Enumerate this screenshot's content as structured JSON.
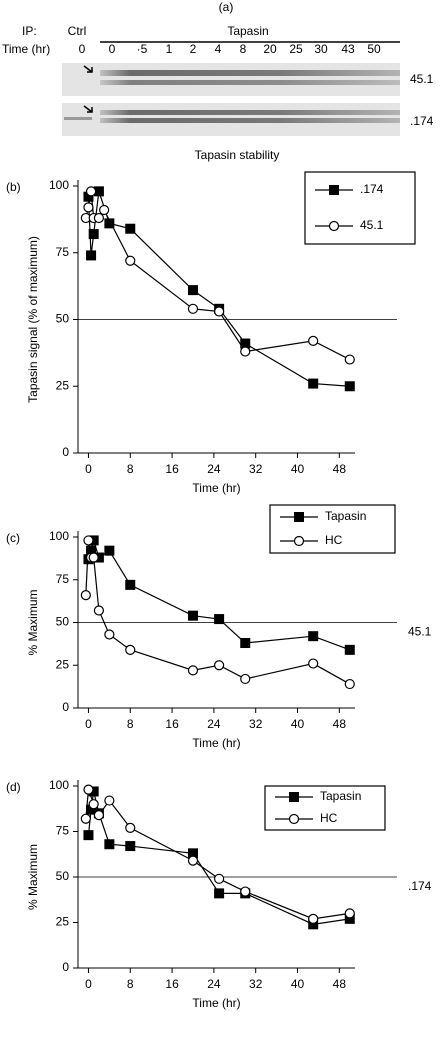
{
  "gel": {
    "label": "(a)",
    "ip": "IP:",
    "ctrl": "Ctrl",
    "tapasin": "Tapasin",
    "time": "Time (hr)",
    "lanes": [
      "0",
      "0",
      "·5",
      "1",
      "2",
      "4",
      "8",
      "20",
      "25",
      "30",
      "43",
      "50"
    ],
    "bands": [
      "45.1",
      ".174"
    ]
  },
  "chart_data": [
    {
      "type": "line",
      "panel": "(b)",
      "title": "Tapasin stability",
      "ylabel": "Tapasin signal (% of maximum)",
      "xlabel": "Time (hr)",
      "xlim": [
        -2,
        51
      ],
      "ylim": [
        0,
        100
      ],
      "xticks": [
        0,
        8,
        16,
        24,
        32,
        40,
        48
      ],
      "yticks": [
        0,
        25,
        50,
        75,
        100
      ],
      "hline": 50,
      "legend": "upper right",
      "series": [
        {
          "name": ".174",
          "color": "#000000",
          "marker": "square",
          "x": [
            0,
            0.5,
            1,
            2,
            4,
            8,
            20,
            25,
            30,
            43,
            50
          ],
          "values": [
            96,
            74,
            82,
            98,
            86,
            84,
            61,
            54,
            41,
            26,
            25
          ]
        },
        {
          "name": "45.1",
          "color": "#000000",
          "marker": "circle",
          "x": [
            -0.5,
            0,
            0.5,
            1,
            2,
            3,
            8,
            20,
            25,
            30,
            43,
            50
          ],
          "values": [
            88,
            92,
            98,
            88,
            88,
            91,
            72,
            54,
            53,
            38,
            42,
            35
          ]
        }
      ]
    },
    {
      "type": "line",
      "panel": "(c)",
      "ylabel": "% Maximum",
      "xlabel": "Time (hr)",
      "annotation": "45.1",
      "xlim": [
        -2,
        51
      ],
      "ylim": [
        0,
        100
      ],
      "xticks": [
        0,
        8,
        16,
        24,
        32,
        40,
        48
      ],
      "yticks": [
        0,
        25,
        50,
        75,
        100
      ],
      "hline": 50,
      "legend": "upper right",
      "series": [
        {
          "name": "Tapasin",
          "color": "#000000",
          "marker": "square",
          "x": [
            0,
            0.5,
            1,
            2,
            4,
            8,
            20,
            25,
            30,
            43,
            50
          ],
          "values": [
            87,
            92,
            98,
            88,
            92,
            72,
            54,
            52,
            38,
            42,
            34
          ]
        },
        {
          "name": "HC",
          "color": "#000000",
          "marker": "circle",
          "x": [
            -0.5,
            0,
            0.5,
            1,
            2,
            4,
            8,
            20,
            25,
            30,
            43,
            50
          ],
          "values": [
            66,
            98,
            88,
            88,
            57,
            43,
            34,
            22,
            25,
            17,
            26,
            14
          ]
        }
      ]
    },
    {
      "type": "line",
      "panel": "(d)",
      "ylabel": "% Maximum",
      "xlabel": "Time (hr)",
      "annotation": ".174",
      "xlim": [
        -2,
        51
      ],
      "ylim": [
        0,
        100
      ],
      "xticks": [
        0,
        8,
        16,
        24,
        32,
        40,
        48
      ],
      "yticks": [
        0,
        25,
        50,
        75,
        100
      ],
      "hline": 50,
      "legend": "upper right",
      "series": [
        {
          "name": "Tapasin",
          "color": "#000000",
          "marker": "square",
          "x": [
            0,
            0.5,
            1,
            2,
            4,
            8,
            20,
            25,
            30,
            43,
            50
          ],
          "values": [
            73,
            87,
            97,
            85,
            68,
            67,
            63,
            41,
            41,
            24,
            27
          ]
        },
        {
          "name": "HC",
          "color": "#000000",
          "marker": "circle",
          "x": [
            -0.5,
            0,
            1,
            2,
            4,
            8,
            20,
            25,
            30,
            43,
            50
          ],
          "values": [
            82,
            98,
            90,
            84,
            92,
            77,
            59,
            49,
            42,
            27,
            30
          ]
        }
      ]
    }
  ]
}
